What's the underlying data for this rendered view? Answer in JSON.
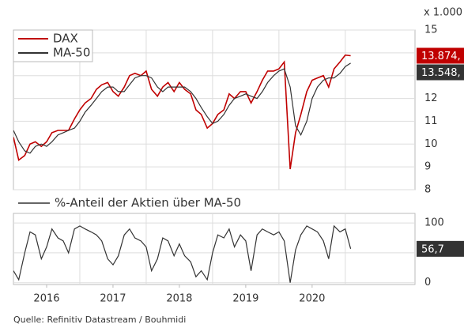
{
  "chart_data": [
    {
      "type": "line",
      "unit_label": "x 1.000",
      "legend": "upper left",
      "grid": true,
      "xlim": [
        2016.0,
        2022.05
      ],
      "xgrid": [
        2017,
        2018,
        2019,
        2020,
        2021
      ],
      "ylim": [
        8,
        15
      ],
      "yticks": [
        8,
        9,
        10,
        11,
        12,
        13,
        14,
        15
      ],
      "x": [
        2016,
        2016.08,
        2016.17,
        2016.25,
        2016.33,
        2016.42,
        2016.5,
        2016.58,
        2016.67,
        2016.75,
        2016.83,
        2016.92,
        2017,
        2017.08,
        2017.17,
        2017.25,
        2017.33,
        2017.42,
        2017.5,
        2017.58,
        2017.67,
        2017.75,
        2017.83,
        2017.92,
        2018,
        2018.08,
        2018.17,
        2018.25,
        2018.33,
        2018.42,
        2018.5,
        2018.58,
        2018.67,
        2018.75,
        2018.83,
        2018.92,
        2019,
        2019.08,
        2019.17,
        2019.25,
        2019.33,
        2019.42,
        2019.5,
        2019.58,
        2019.67,
        2019.75,
        2019.83,
        2019.92,
        2020,
        2020.08,
        2020.17,
        2020.25,
        2020.33,
        2020.42,
        2020.5,
        2020.58,
        2020.67,
        2020.75,
        2020.83,
        2020.92,
        2021,
        2021.08
      ],
      "series": [
        {
          "name": "DAX",
          "color": "#c00000",
          "last_label": "13.874,",
          "values": [
            10.3,
            9.3,
            9.5,
            10.0,
            10.1,
            9.9,
            10.1,
            10.5,
            10.6,
            10.6,
            10.6,
            11.1,
            11.5,
            11.8,
            12.0,
            12.4,
            12.6,
            12.7,
            12.3,
            12.1,
            12.5,
            13.0,
            13.1,
            13.0,
            13.2,
            12.4,
            12.1,
            12.5,
            12.7,
            12.3,
            12.7,
            12.4,
            12.2,
            11.5,
            11.3,
            10.7,
            10.9,
            11.3,
            11.5,
            12.2,
            12.0,
            12.3,
            12.3,
            11.8,
            12.3,
            12.8,
            13.2,
            13.2,
            13.3,
            13.6,
            8.9,
            10.5,
            11.3,
            12.3,
            12.8,
            12.9,
            13.0,
            12.5,
            13.3,
            13.6,
            13.9,
            13.874
          ]
        },
        {
          "name": "MA-50",
          "color": "#333333",
          "last_label": "13.548,",
          "values": [
            10.6,
            10.1,
            9.7,
            9.6,
            9.9,
            10.0,
            9.9,
            10.1,
            10.4,
            10.5,
            10.6,
            10.7,
            11.0,
            11.4,
            11.7,
            12.0,
            12.3,
            12.5,
            12.5,
            12.3,
            12.3,
            12.6,
            12.9,
            13.0,
            13.0,
            12.9,
            12.5,
            12.3,
            12.5,
            12.5,
            12.5,
            12.5,
            12.3,
            12.0,
            11.6,
            11.2,
            10.9,
            11.0,
            11.3,
            11.7,
            12.0,
            12.1,
            12.2,
            12.1,
            12.0,
            12.3,
            12.7,
            13.0,
            13.2,
            13.3,
            12.5,
            10.8,
            10.4,
            11.0,
            12.0,
            12.5,
            12.8,
            12.9,
            12.9,
            13.1,
            13.4,
            13.548
          ]
        }
      ]
    },
    {
      "type": "line",
      "grid": true,
      "xlim": [
        2016.0,
        2022.05
      ],
      "xgrid": [
        2017,
        2018,
        2019,
        2020,
        2021
      ],
      "xticks": [
        {
          "value": 2016.5,
          "label": "2016"
        },
        {
          "value": 2017.5,
          "label": "2017"
        },
        {
          "value": 2018.5,
          "label": "2018"
        },
        {
          "value": 2019.5,
          "label": "2019"
        },
        {
          "value": 2020.5,
          "label": "2020"
        }
      ],
      "ylim": [
        -3,
        116
      ],
      "yticks": [
        0,
        50,
        100
      ],
      "x": [
        2016,
        2016.08,
        2016.17,
        2016.25,
        2016.33,
        2016.42,
        2016.5,
        2016.58,
        2016.67,
        2016.75,
        2016.83,
        2016.92,
        2017,
        2017.08,
        2017.17,
        2017.25,
        2017.33,
        2017.42,
        2017.5,
        2017.58,
        2017.67,
        2017.75,
        2017.83,
        2017.92,
        2018,
        2018.08,
        2018.17,
        2018.25,
        2018.33,
        2018.42,
        2018.5,
        2018.58,
        2018.67,
        2018.75,
        2018.83,
        2018.92,
        2019,
        2019.08,
        2019.17,
        2019.25,
        2019.33,
        2019.42,
        2019.5,
        2019.58,
        2019.67,
        2019.75,
        2019.83,
        2019.92,
        2020,
        2020.08,
        2020.17,
        2020.25,
        2020.33,
        2020.42,
        2020.5,
        2020.58,
        2020.67,
        2020.75,
        2020.83,
        2020.92,
        2021,
        2021.08
      ],
      "series": [
        {
          "name": "%-Anteil der Aktien über MA-50",
          "color": "#333333",
          "last_label": "56,7",
          "values": [
            20,
            5,
            50,
            85,
            80,
            40,
            60,
            90,
            75,
            70,
            50,
            90,
            95,
            90,
            85,
            80,
            70,
            40,
            30,
            45,
            80,
            90,
            75,
            70,
            60,
            20,
            40,
            75,
            70,
            45,
            65,
            45,
            35,
            10,
            20,
            5,
            50,
            80,
            75,
            90,
            60,
            80,
            70,
            20,
            80,
            90,
            85,
            80,
            85,
            70,
            0,
            55,
            80,
            95,
            90,
            85,
            70,
            40,
            95,
            85,
            90,
            56.7
          ]
        }
      ]
    }
  ],
  "source": "Quelle: Refinitiv Datastream / Bouhmidi"
}
